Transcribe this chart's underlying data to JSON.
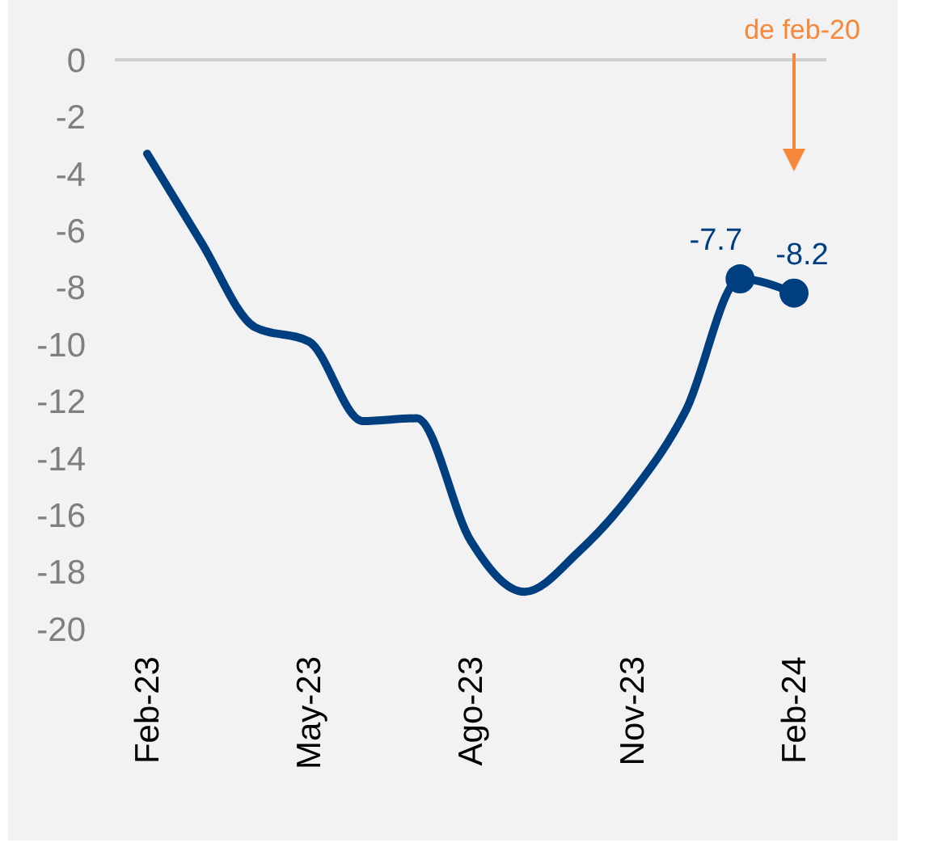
{
  "chart_data": {
    "type": "line",
    "categories": [
      "Feb-23",
      null,
      null,
      "May-23",
      null,
      null,
      "Ago-23",
      null,
      null,
      "Nov-23",
      null,
      null,
      "Feb-24"
    ],
    "series": [
      {
        "color": "#003f7f",
        "values": [
          -3.3,
          -6.4,
          -9.4,
          -9.9,
          -12.7,
          -12.6,
          -16.9,
          -18.7,
          -17.3,
          -15.2,
          -12.3,
          -7.7,
          -8.2
        ],
        "value_labels": [
          null,
          null,
          null,
          null,
          null,
          null,
          null,
          null,
          null,
          null,
          null,
          "-7.7",
          "-8.2"
        ]
      }
    ],
    "ylim": [
      -20,
      0
    ],
    "yticks": [
      0,
      -2,
      -4,
      -6,
      -8,
      -10,
      -12,
      -14,
      -16,
      -18,
      -20
    ],
    "ref_lines": [
      {
        "axis": "y",
        "value": 0,
        "color": "#d0d0d0"
      }
    ],
    "annotations": [
      "de feb-20"
    ]
  }
}
